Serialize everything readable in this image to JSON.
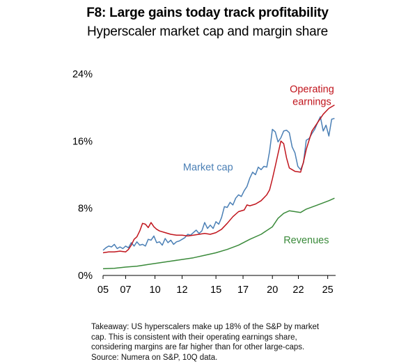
{
  "chart_data": {
    "type": "line",
    "title": "F8: Large gains today track profitability",
    "subtitle": "Hyperscaler market cap and margin share",
    "xlabel": "",
    "ylabel": "",
    "xlim": [
      2005,
      2025.6
    ],
    "ylim": [
      0,
      24
    ],
    "y_ticks": [
      "0%",
      "8%",
      "16%",
      "24%"
    ],
    "y_tick_values": [
      0,
      8,
      16,
      24
    ],
    "x_ticks": [
      "05",
      "07",
      "10",
      "12",
      "15",
      "17",
      "20",
      "22",
      "25"
    ],
    "x_tick_values": [
      2005,
      2007,
      2009.6,
      2012,
      2015,
      2017.4,
      2020,
      2022.3,
      2024.9
    ],
    "grid": false,
    "legend": "none (series labelled directly on chart)",
    "series": [
      {
        "name": "Market cap",
        "color": "#4a7fb5",
        "label_pos": [
          2014.3,
          12.5
        ],
        "points": [
          [
            2005.0,
            3.0
          ],
          [
            2005.25,
            3.3
          ],
          [
            2005.5,
            3.5
          ],
          [
            2005.75,
            3.4
          ],
          [
            2006.0,
            3.7
          ],
          [
            2006.25,
            3.2
          ],
          [
            2006.5,
            3.4
          ],
          [
            2006.75,
            3.2
          ],
          [
            2007.0,
            3.5
          ],
          [
            2007.25,
            3.3
          ],
          [
            2007.5,
            3.9
          ],
          [
            2007.75,
            3.5
          ],
          [
            2008.0,
            4.0
          ],
          [
            2008.25,
            3.6
          ],
          [
            2008.5,
            3.7
          ],
          [
            2008.75,
            3.5
          ],
          [
            2009.0,
            4.3
          ],
          [
            2009.25,
            4.2
          ],
          [
            2009.5,
            4.7
          ],
          [
            2009.75,
            3.9
          ],
          [
            2010.0,
            4.0
          ],
          [
            2010.25,
            3.6
          ],
          [
            2010.5,
            4.4
          ],
          [
            2010.75,
            3.9
          ],
          [
            2011.0,
            4.2
          ],
          [
            2011.25,
            3.7
          ],
          [
            2011.5,
            4.0
          ],
          [
            2011.75,
            4.1
          ],
          [
            2012.0,
            4.3
          ],
          [
            2012.25,
            4.5
          ],
          [
            2012.5,
            4.9
          ],
          [
            2012.75,
            4.8
          ],
          [
            2013.0,
            5.1
          ],
          [
            2013.25,
            5.4
          ],
          [
            2013.5,
            5.0
          ],
          [
            2013.75,
            5.3
          ],
          [
            2014.0,
            6.3
          ],
          [
            2014.25,
            5.6
          ],
          [
            2014.5,
            6.0
          ],
          [
            2014.75,
            5.6
          ],
          [
            2015.0,
            6.4
          ],
          [
            2015.25,
            6.1
          ],
          [
            2015.5,
            6.9
          ],
          [
            2015.75,
            8.2
          ],
          [
            2016.0,
            8.1
          ],
          [
            2016.25,
            8.7
          ],
          [
            2016.5,
            8.4
          ],
          [
            2016.75,
            9.2
          ],
          [
            2017.0,
            9.6
          ],
          [
            2017.25,
            9.4
          ],
          [
            2017.5,
            10.1
          ],
          [
            2017.75,
            10.6
          ],
          [
            2018.0,
            11.6
          ],
          [
            2018.25,
            12.3
          ],
          [
            2018.5,
            12.0
          ],
          [
            2018.75,
            12.9
          ],
          [
            2019.0,
            12.6
          ],
          [
            2019.25,
            13.0
          ],
          [
            2019.5,
            12.9
          ],
          [
            2019.75,
            14.8
          ],
          [
            2020.0,
            17.4
          ],
          [
            2020.25,
            17.1
          ],
          [
            2020.5,
            15.9
          ],
          [
            2020.75,
            16.4
          ],
          [
            2021.0,
            17.2
          ],
          [
            2021.25,
            17.3
          ],
          [
            2021.5,
            17.0
          ],
          [
            2021.75,
            15.3
          ],
          [
            2022.0,
            14.6
          ],
          [
            2022.25,
            13.0
          ],
          [
            2022.5,
            12.6
          ],
          [
            2022.75,
            13.4
          ],
          [
            2023.0,
            16.1
          ],
          [
            2023.25,
            16.3
          ],
          [
            2023.5,
            16.9
          ],
          [
            2023.75,
            17.4
          ],
          [
            2024.0,
            18.2
          ],
          [
            2024.25,
            18.9
          ],
          [
            2024.5,
            17.2
          ],
          [
            2024.75,
            17.9
          ],
          [
            2025.0,
            16.6
          ],
          [
            2025.25,
            18.6
          ],
          [
            2025.5,
            18.7
          ]
        ]
      },
      {
        "name": "Operating earnings",
        "label_lines": [
          "Operating",
          "earnings"
        ],
        "color": "#c0141c",
        "label_pos": [
          2023.5,
          21.8
        ],
        "points": [
          [
            2005.0,
            2.7
          ],
          [
            2005.5,
            2.8
          ],
          [
            2006.0,
            2.8
          ],
          [
            2006.5,
            2.9
          ],
          [
            2007.0,
            2.8
          ],
          [
            2007.25,
            3.1
          ],
          [
            2007.5,
            3.6
          ],
          [
            2007.75,
            4.3
          ],
          [
            2008.0,
            4.6
          ],
          [
            2008.25,
            5.3
          ],
          [
            2008.5,
            6.2
          ],
          [
            2008.75,
            6.1
          ],
          [
            2009.0,
            5.7
          ],
          [
            2009.25,
            6.3
          ],
          [
            2009.5,
            5.8
          ],
          [
            2009.75,
            5.5
          ],
          [
            2010.0,
            5.3
          ],
          [
            2010.5,
            5.1
          ],
          [
            2011.0,
            4.9
          ],
          [
            2011.5,
            4.8
          ],
          [
            2012.0,
            4.8
          ],
          [
            2012.5,
            4.7
          ],
          [
            2013.0,
            4.8
          ],
          [
            2013.5,
            4.9
          ],
          [
            2014.0,
            5.0
          ],
          [
            2014.5,
            4.9
          ],
          [
            2015.0,
            5.1
          ],
          [
            2015.5,
            5.5
          ],
          [
            2016.0,
            6.2
          ],
          [
            2016.5,
            7.0
          ],
          [
            2017.0,
            7.6
          ],
          [
            2017.5,
            7.8
          ],
          [
            2017.75,
            8.4
          ],
          [
            2018.0,
            8.3
          ],
          [
            2018.5,
            8.5
          ],
          [
            2019.0,
            8.9
          ],
          [
            2019.5,
            9.6
          ],
          [
            2019.75,
            10.2
          ],
          [
            2020.0,
            11.5
          ],
          [
            2020.25,
            13.0
          ],
          [
            2020.5,
            14.5
          ],
          [
            2020.75,
            16.0
          ],
          [
            2021.0,
            15.7
          ],
          [
            2021.25,
            14.0
          ],
          [
            2021.5,
            12.8
          ],
          [
            2021.75,
            12.6
          ],
          [
            2022.0,
            12.4
          ],
          [
            2022.5,
            12.3
          ],
          [
            2022.75,
            13.5
          ],
          [
            2023.0,
            15.0
          ],
          [
            2023.5,
            17.2
          ],
          [
            2024.0,
            18.2
          ],
          [
            2024.5,
            19.2
          ],
          [
            2025.0,
            19.9
          ],
          [
            2025.5,
            20.3
          ]
        ]
      },
      {
        "name": "Revenues",
        "color": "#3a8a3a",
        "label_pos": [
          2023.0,
          3.8
        ],
        "points": [
          [
            2005.0,
            0.8
          ],
          [
            2006.0,
            0.85
          ],
          [
            2007.0,
            1.0
          ],
          [
            2008.0,
            1.1
          ],
          [
            2009.0,
            1.3
          ],
          [
            2010.0,
            1.5
          ],
          [
            2011.0,
            1.7
          ],
          [
            2012.0,
            1.9
          ],
          [
            2013.0,
            2.1
          ],
          [
            2014.0,
            2.4
          ],
          [
            2015.0,
            2.7
          ],
          [
            2016.0,
            3.1
          ],
          [
            2017.0,
            3.6
          ],
          [
            2018.0,
            4.3
          ],
          [
            2019.0,
            4.9
          ],
          [
            2020.0,
            5.8
          ],
          [
            2020.5,
            6.8
          ],
          [
            2021.0,
            7.4
          ],
          [
            2021.5,
            7.7
          ],
          [
            2022.0,
            7.6
          ],
          [
            2022.5,
            7.5
          ],
          [
            2023.0,
            7.9
          ],
          [
            2024.0,
            8.4
          ],
          [
            2025.0,
            8.9
          ],
          [
            2025.5,
            9.2
          ]
        ]
      }
    ]
  },
  "takeaway": "Takeaway: US hyperscalers make up 18% of the S&P by market cap. This is consistent with their operating earnings share, considering margins are far higher than for other large-caps. Source: Numera on S&P, 10Q data."
}
